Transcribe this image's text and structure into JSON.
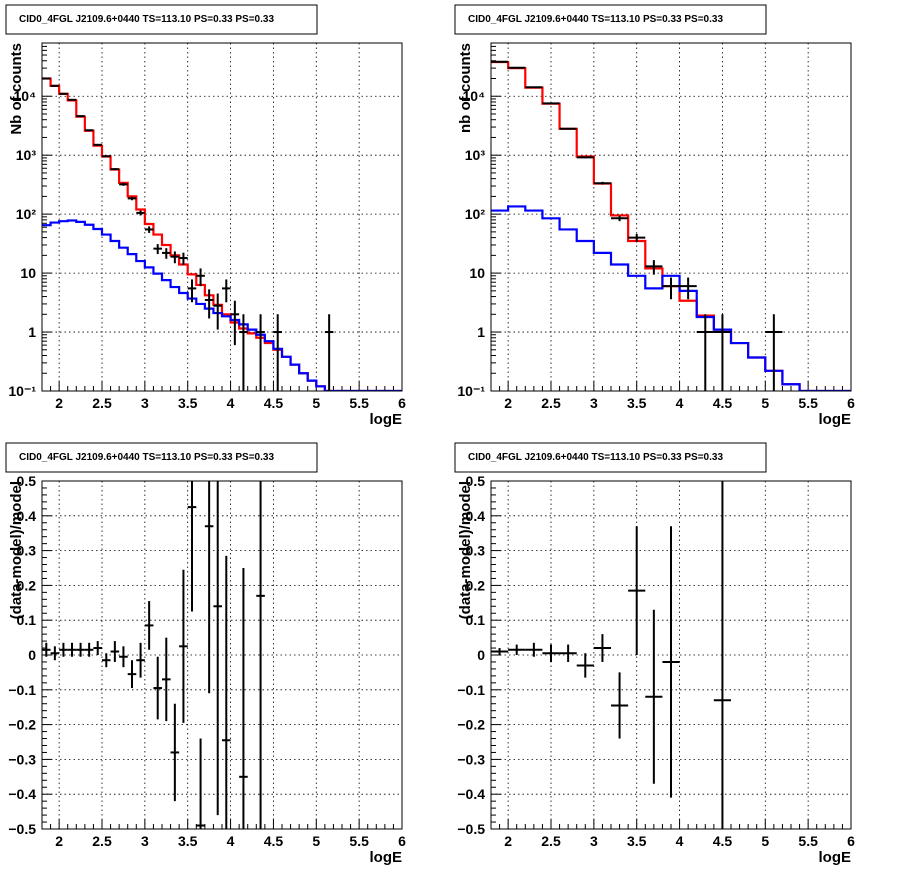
{
  "chart_data": [
    {
      "id": "top-left",
      "type": "step-line",
      "title": "CID0_4FGL J2109.6+0440 TS=113.10 PS=0.33 PS=0.33",
      "xlabel": "logE",
      "ylabel": "Nb of counts",
      "xlim": [
        1.8,
        6.0
      ],
      "ylim": [
        0.1,
        80000
      ],
      "yscale": "log",
      "grid": true,
      "xticks": [
        "2",
        "2.5",
        "3",
        "3.5",
        "4",
        "4.5",
        "5",
        "5.5",
        "6"
      ],
      "yticks": [
        "10⁻¹",
        "1",
        "10",
        "10²",
        "10³",
        "10⁴"
      ],
      "bin_width": 0.1,
      "series": [
        {
          "color": "#ff0000",
          "x": [
            1.8,
            1.9,
            2.0,
            2.1,
            2.2,
            2.3,
            2.4,
            2.5,
            2.6,
            2.7,
            2.8,
            2.9,
            3.0,
            3.1,
            3.2,
            3.3,
            3.4,
            3.5,
            3.6,
            3.7,
            3.8,
            3.9,
            4.0,
            4.1,
            4.2,
            4.3,
            4.4,
            4.5,
            4.6,
            4.7,
            4.8,
            4.9,
            5.0,
            5.1,
            5.2,
            5.3,
            5.4,
            5.5,
            5.6,
            5.7,
            5.8,
            5.9
          ],
          "values": [
            20000,
            15000,
            11000,
            8500,
            4500,
            2600,
            1450,
            950,
            570,
            340,
            200,
            120,
            68,
            45,
            30,
            20,
            14,
            9.5,
            6.3,
            4.2,
            2.9,
            2.0,
            1.45,
            1.15,
            0.95,
            0.8,
            0.65,
            0.5,
            0.38,
            0.28,
            0.2,
            0.15,
            0.12,
            0.1,
            0.1,
            0.1,
            0.1,
            0.1,
            0.1,
            0.1,
            0.1,
            0.1
          ]
        },
        {
          "color": "#0000ff",
          "x": [
            1.8,
            1.9,
            2.0,
            2.1,
            2.2,
            2.3,
            2.4,
            2.5,
            2.6,
            2.7,
            2.8,
            2.9,
            3.0,
            3.1,
            3.2,
            3.3,
            3.4,
            3.5,
            3.6,
            3.7,
            3.8,
            3.9,
            4.0,
            4.1,
            4.2,
            4.3,
            4.4,
            4.5,
            4.6,
            4.7,
            4.8,
            4.9,
            5.0,
            5.1,
            5.2,
            5.3,
            5.4,
            5.5,
            5.6,
            5.7,
            5.8,
            5.9
          ],
          "values": [
            65,
            72,
            76,
            78,
            74,
            66,
            56,
            45,
            35,
            27,
            21,
            16,
            12.5,
            9.8,
            7.6,
            5.8,
            4.6,
            3.7,
            3.0,
            2.5,
            2.1,
            1.85,
            1.6,
            1.35,
            1.1,
            0.9,
            0.7,
            0.52,
            0.38,
            0.28,
            0.2,
            0.15,
            0.12,
            0.1,
            0.1,
            0.1,
            0.1,
            0.1,
            0.1,
            0.1,
            0.1,
            0.1
          ]
        }
      ],
      "points": {
        "color": "#000000",
        "x": [
          1.85,
          1.95,
          2.05,
          2.15,
          2.25,
          2.35,
          2.45,
          2.55,
          2.65,
          2.75,
          2.85,
          2.95,
          3.05,
          3.15,
          3.25,
          3.35,
          3.45,
          3.55,
          3.65,
          3.75,
          3.85,
          3.95,
          4.05,
          4.15,
          4.35,
          4.55,
          5.15
        ],
        "y": [
          20000,
          15000,
          11000,
          8700,
          4600,
          2650,
          1500,
          960,
          580,
          320,
          185,
          105,
          55,
          26,
          22,
          19,
          18,
          5.5,
          9,
          3.5,
          2.8,
          5.5,
          2,
          1,
          1,
          1,
          1
        ],
        "yerr_low": [
          150,
          120,
          100,
          90,
          70,
          50,
          38,
          30,
          24,
          18,
          13,
          10,
          7,
          5,
          4.5,
          4.3,
          4.2,
          2.3,
          3,
          1.8,
          1.7,
          2.3,
          1.4,
          0.9,
          0.9,
          0.9,
          0.9
        ],
        "yerr_high": [
          150,
          120,
          100,
          90,
          70,
          50,
          38,
          30,
          24,
          18,
          13,
          10,
          7,
          5,
          4.5,
          4.3,
          4.2,
          2.3,
          3,
          1.8,
          1.7,
          2.3,
          1.4,
          1,
          1,
          1,
          1
        ]
      }
    },
    {
      "id": "top-right",
      "type": "step-line",
      "title": "CID0_4FGL J2109.6+0440 TS=113.10 PS=0.33 PS=0.33",
      "xlabel": "logE",
      "ylabel": "nb of counts",
      "xlim": [
        1.8,
        6.0
      ],
      "ylim": [
        0.1,
        80000
      ],
      "yscale": "log",
      "grid": true,
      "xticks": [
        "2",
        "2.5",
        "3",
        "3.5",
        "4",
        "4.5",
        "5",
        "5.5",
        "6"
      ],
      "yticks": [
        "10⁻¹",
        "1",
        "10",
        "10²",
        "10³",
        "10⁴"
      ],
      "bin_width": 0.2,
      "series": [
        {
          "color": "#ff0000",
          "x": [
            1.8,
            2.0,
            2.2,
            2.4,
            2.6,
            2.8,
            3.0,
            3.2,
            3.4,
            3.6,
            3.8,
            4.0,
            4.2,
            4.4,
            4.6,
            4.8,
            5.0,
            5.2,
            5.4,
            5.6,
            5.8
          ],
          "values": [
            38000,
            30000,
            14000,
            7500,
            2800,
            950,
            330,
            95,
            35,
            12,
            6,
            3.4,
            1.9,
            1.1,
            0.65,
            0.37,
            0.22,
            0.13,
            0.1,
            0.1,
            0.1
          ]
        },
        {
          "color": "#0000ff",
          "x": [
            1.8,
            2.0,
            2.2,
            2.4,
            2.6,
            2.8,
            3.0,
            3.2,
            3.4,
            3.6,
            3.8,
            4.0,
            4.2,
            4.4,
            4.6,
            4.8,
            5.0,
            5.2,
            5.4,
            5.6,
            5.8
          ],
          "values": [
            115,
            135,
            115,
            85,
            55,
            35,
            22,
            14,
            9,
            5.5,
            9,
            5,
            1.8,
            1.1,
            0.65,
            0.37,
            0.22,
            0.13,
            0.1,
            0.1,
            0.1
          ]
        }
      ],
      "points": {
        "color": "#000000",
        "x": [
          1.9,
          2.1,
          2.3,
          2.5,
          2.7,
          2.9,
          3.1,
          3.3,
          3.5,
          3.7,
          3.9,
          4.1,
          4.3,
          4.5,
          5.1
        ],
        "y": [
          38500,
          30500,
          14200,
          7550,
          2810,
          920,
          335,
          85,
          40,
          13,
          6,
          6,
          1,
          1,
          1
        ],
        "yerr_low": [
          200,
          175,
          120,
          85,
          53,
          30,
          18,
          9,
          6.3,
          3.6,
          2.4,
          2.4,
          0.9,
          0.9,
          0.9
        ],
        "yerr_high": [
          200,
          175,
          120,
          85,
          53,
          30,
          18,
          9,
          6.3,
          3.6,
          2.4,
          2.4,
          1,
          1,
          1
        ]
      }
    },
    {
      "id": "bottom-left",
      "type": "errorbar",
      "title": "CID0_4FGL J2109.6+0440 TS=113.10 PS=0.33 PS=0.33",
      "xlabel": "logE",
      "ylabel": "(data-model)/model",
      "xlim": [
        1.8,
        6.0
      ],
      "ylim": [
        -0.5,
        0.5
      ],
      "grid": true,
      "xticks": [
        "2",
        "2.5",
        "3",
        "3.5",
        "4",
        "4.5",
        "5",
        "5.5",
        "6"
      ],
      "yticks": [
        "−0.5",
        "−0.4",
        "−0.3",
        "−0.2",
        "−0.1",
        "0",
        "0.1",
        "0.2",
        "0.3",
        "0.4",
        "0.5"
      ],
      "points": {
        "color": "#000000",
        "x_half_width": 0.05,
        "x": [
          1.85,
          1.95,
          2.05,
          2.15,
          2.25,
          2.35,
          2.45,
          2.55,
          2.65,
          2.75,
          2.85,
          2.95,
          3.05,
          3.15,
          3.25,
          3.35,
          3.45,
          3.55,
          3.65,
          3.75,
          3.85,
          3.95,
          4.15,
          4.35
        ],
        "y": [
          0.015,
          0.005,
          0.015,
          0.015,
          0.015,
          0.015,
          0.02,
          -0.015,
          0.01,
          -0.005,
          -0.055,
          -0.015,
          0.085,
          -0.095,
          -0.07,
          -0.28,
          0.025,
          0.425,
          -0.49,
          0.37,
          0.14,
          -0.245,
          -0.35,
          0.17
        ],
        "yerr": [
          0.02,
          0.02,
          0.02,
          0.02,
          0.02,
          0.02,
          0.02,
          0.02,
          0.03,
          0.03,
          0.04,
          0.05,
          0.07,
          0.09,
          0.12,
          0.14,
          0.22,
          0.3,
          0.25,
          0.48,
          0.6,
          0.53,
          0.6,
          0.9
        ]
      }
    },
    {
      "id": "bottom-right",
      "type": "errorbar",
      "title": "CID0_4FGL J2109.6+0440 TS=113.10 PS=0.33 PS=0.33",
      "xlabel": "logE",
      "ylabel": "(data-model)/model",
      "xlim": [
        1.8,
        6.0
      ],
      "ylim": [
        -0.5,
        0.5
      ],
      "grid": true,
      "xticks": [
        "2",
        "2.5",
        "3",
        "3.5",
        "4",
        "4.5",
        "5",
        "5.5",
        "6"
      ],
      "yticks": [
        "−0.5",
        "−0.4",
        "−0.3",
        "−0.2",
        "−0.1",
        "0",
        "0.1",
        "0.2",
        "0.3",
        "0.4",
        "0.5"
      ],
      "points": {
        "color": "#000000",
        "x_half_width": 0.1,
        "x": [
          1.9,
          2.1,
          2.3,
          2.5,
          2.7,
          2.9,
          3.1,
          3.3,
          3.5,
          3.7,
          3.9,
          4.5
        ],
        "y": [
          0.01,
          0.015,
          0.015,
          0.005,
          0.005,
          -0.03,
          0.02,
          -0.145,
          0.185,
          -0.12,
          -0.02,
          -0.13
        ],
        "yerr": [
          0.01,
          0.015,
          0.02,
          0.025,
          0.025,
          0.035,
          0.04,
          0.095,
          0.185,
          0.25,
          0.39,
          0.9
        ]
      }
    }
  ]
}
